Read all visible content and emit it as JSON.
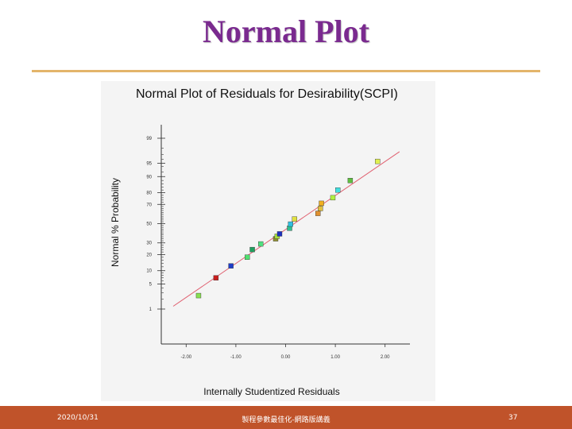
{
  "slide": {
    "title": "Normal Plot",
    "footer_date": "2020/10/31",
    "footer_center": "製程參數最佳化-網路版講義",
    "page_number": "37",
    "accent_color": "#7a2a8f",
    "rule_color": "#e3b56a",
    "footer_color": "#c0532a"
  },
  "chart_data": {
    "type": "scatter",
    "title": "Normal Plot of Residuals for Desirability(SCPI)",
    "xlabel": "Internally Studentized Residuals",
    "ylabel": "Normal % Probability",
    "xlim": [
      -2.5,
      2.5
    ],
    "x_ticks": [
      -2,
      -1,
      0,
      1,
      2
    ],
    "x_tick_labels": [
      "-2.00",
      "-1.00",
      "0.00",
      "1.00",
      "2.00"
    ],
    "y_scale": "normal-probability",
    "y_ticks": [
      1,
      5,
      10,
      20,
      30,
      50,
      70,
      80,
      90,
      95,
      99
    ],
    "y_tick_labels": [
      "1",
      "5",
      "10",
      "20",
      "30",
      "50",
      "70",
      "80",
      "90",
      "95",
      "99"
    ],
    "grid": false,
    "reference_line": {
      "from": [
        -2.26,
        1.22
      ],
      "to": [
        2.29,
        97.5
      ],
      "color": "#e06070"
    },
    "points": [
      {
        "x": -1.75,
        "y": 2.5,
        "color": "#88e050"
      },
      {
        "x": -1.4,
        "y": 7.0,
        "color": "#c81e1e"
      },
      {
        "x": -1.1,
        "y": 12.5,
        "color": "#1e3cc8"
      },
      {
        "x": -0.77,
        "y": 18.0,
        "color": "#50e070"
      },
      {
        "x": -0.67,
        "y": 24.0,
        "color": "#20a060"
      },
      {
        "x": -0.5,
        "y": 29.0,
        "color": "#50e080"
      },
      {
        "x": -0.2,
        "y": 34.0,
        "color": "#909030"
      },
      {
        "x": -0.17,
        "y": 36.5,
        "color": "#a8e040"
      },
      {
        "x": -0.12,
        "y": 39.0,
        "color": "#1e30c0"
      },
      {
        "x": 0.08,
        "y": 45.0,
        "color": "#30c090"
      },
      {
        "x": 0.1,
        "y": 49.5,
        "color": "#30c0e0"
      },
      {
        "x": 0.18,
        "y": 55.0,
        "color": "#e0e040"
      },
      {
        "x": 0.65,
        "y": 61.0,
        "color": "#e09030"
      },
      {
        "x": 0.7,
        "y": 66.0,
        "color": "#e0c040"
      },
      {
        "x": 0.72,
        "y": 71.0,
        "color": "#f0b020"
      },
      {
        "x": 0.95,
        "y": 76.0,
        "color": "#b0f040"
      },
      {
        "x": 1.05,
        "y": 82.0,
        "color": "#40e0e0"
      },
      {
        "x": 1.3,
        "y": 88.0,
        "color": "#60c040"
      },
      {
        "x": 1.85,
        "y": 95.5,
        "color": "#e0f050"
      }
    ]
  }
}
